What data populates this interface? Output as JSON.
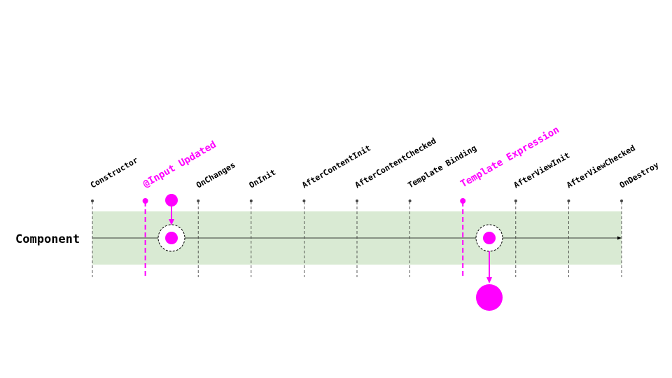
{
  "diagram": {
    "row_label": "Component",
    "events": [
      {
        "label": "Constructor",
        "highlight": false
      },
      {
        "label": "@Input Updated",
        "highlight": true
      },
      {
        "label": "OnChanges",
        "highlight": false
      },
      {
        "label": "OnInit",
        "highlight": false
      },
      {
        "label": "AfterContentInit",
        "highlight": false
      },
      {
        "label": "AfterContentChecked",
        "highlight": false
      },
      {
        "label": "Template Binding",
        "highlight": false
      },
      {
        "label": "Template Expression",
        "highlight": true
      },
      {
        "label": "AfterViewInit",
        "highlight": false
      },
      {
        "label": "AfterViewChecked",
        "highlight": false
      },
      {
        "label": "OnDestroy",
        "highlight": false
      }
    ],
    "colors": {
      "accent": "#ff00ff",
      "band": "#d9ead3",
      "ink": "#000000",
      "guide": "#333333"
    }
  }
}
